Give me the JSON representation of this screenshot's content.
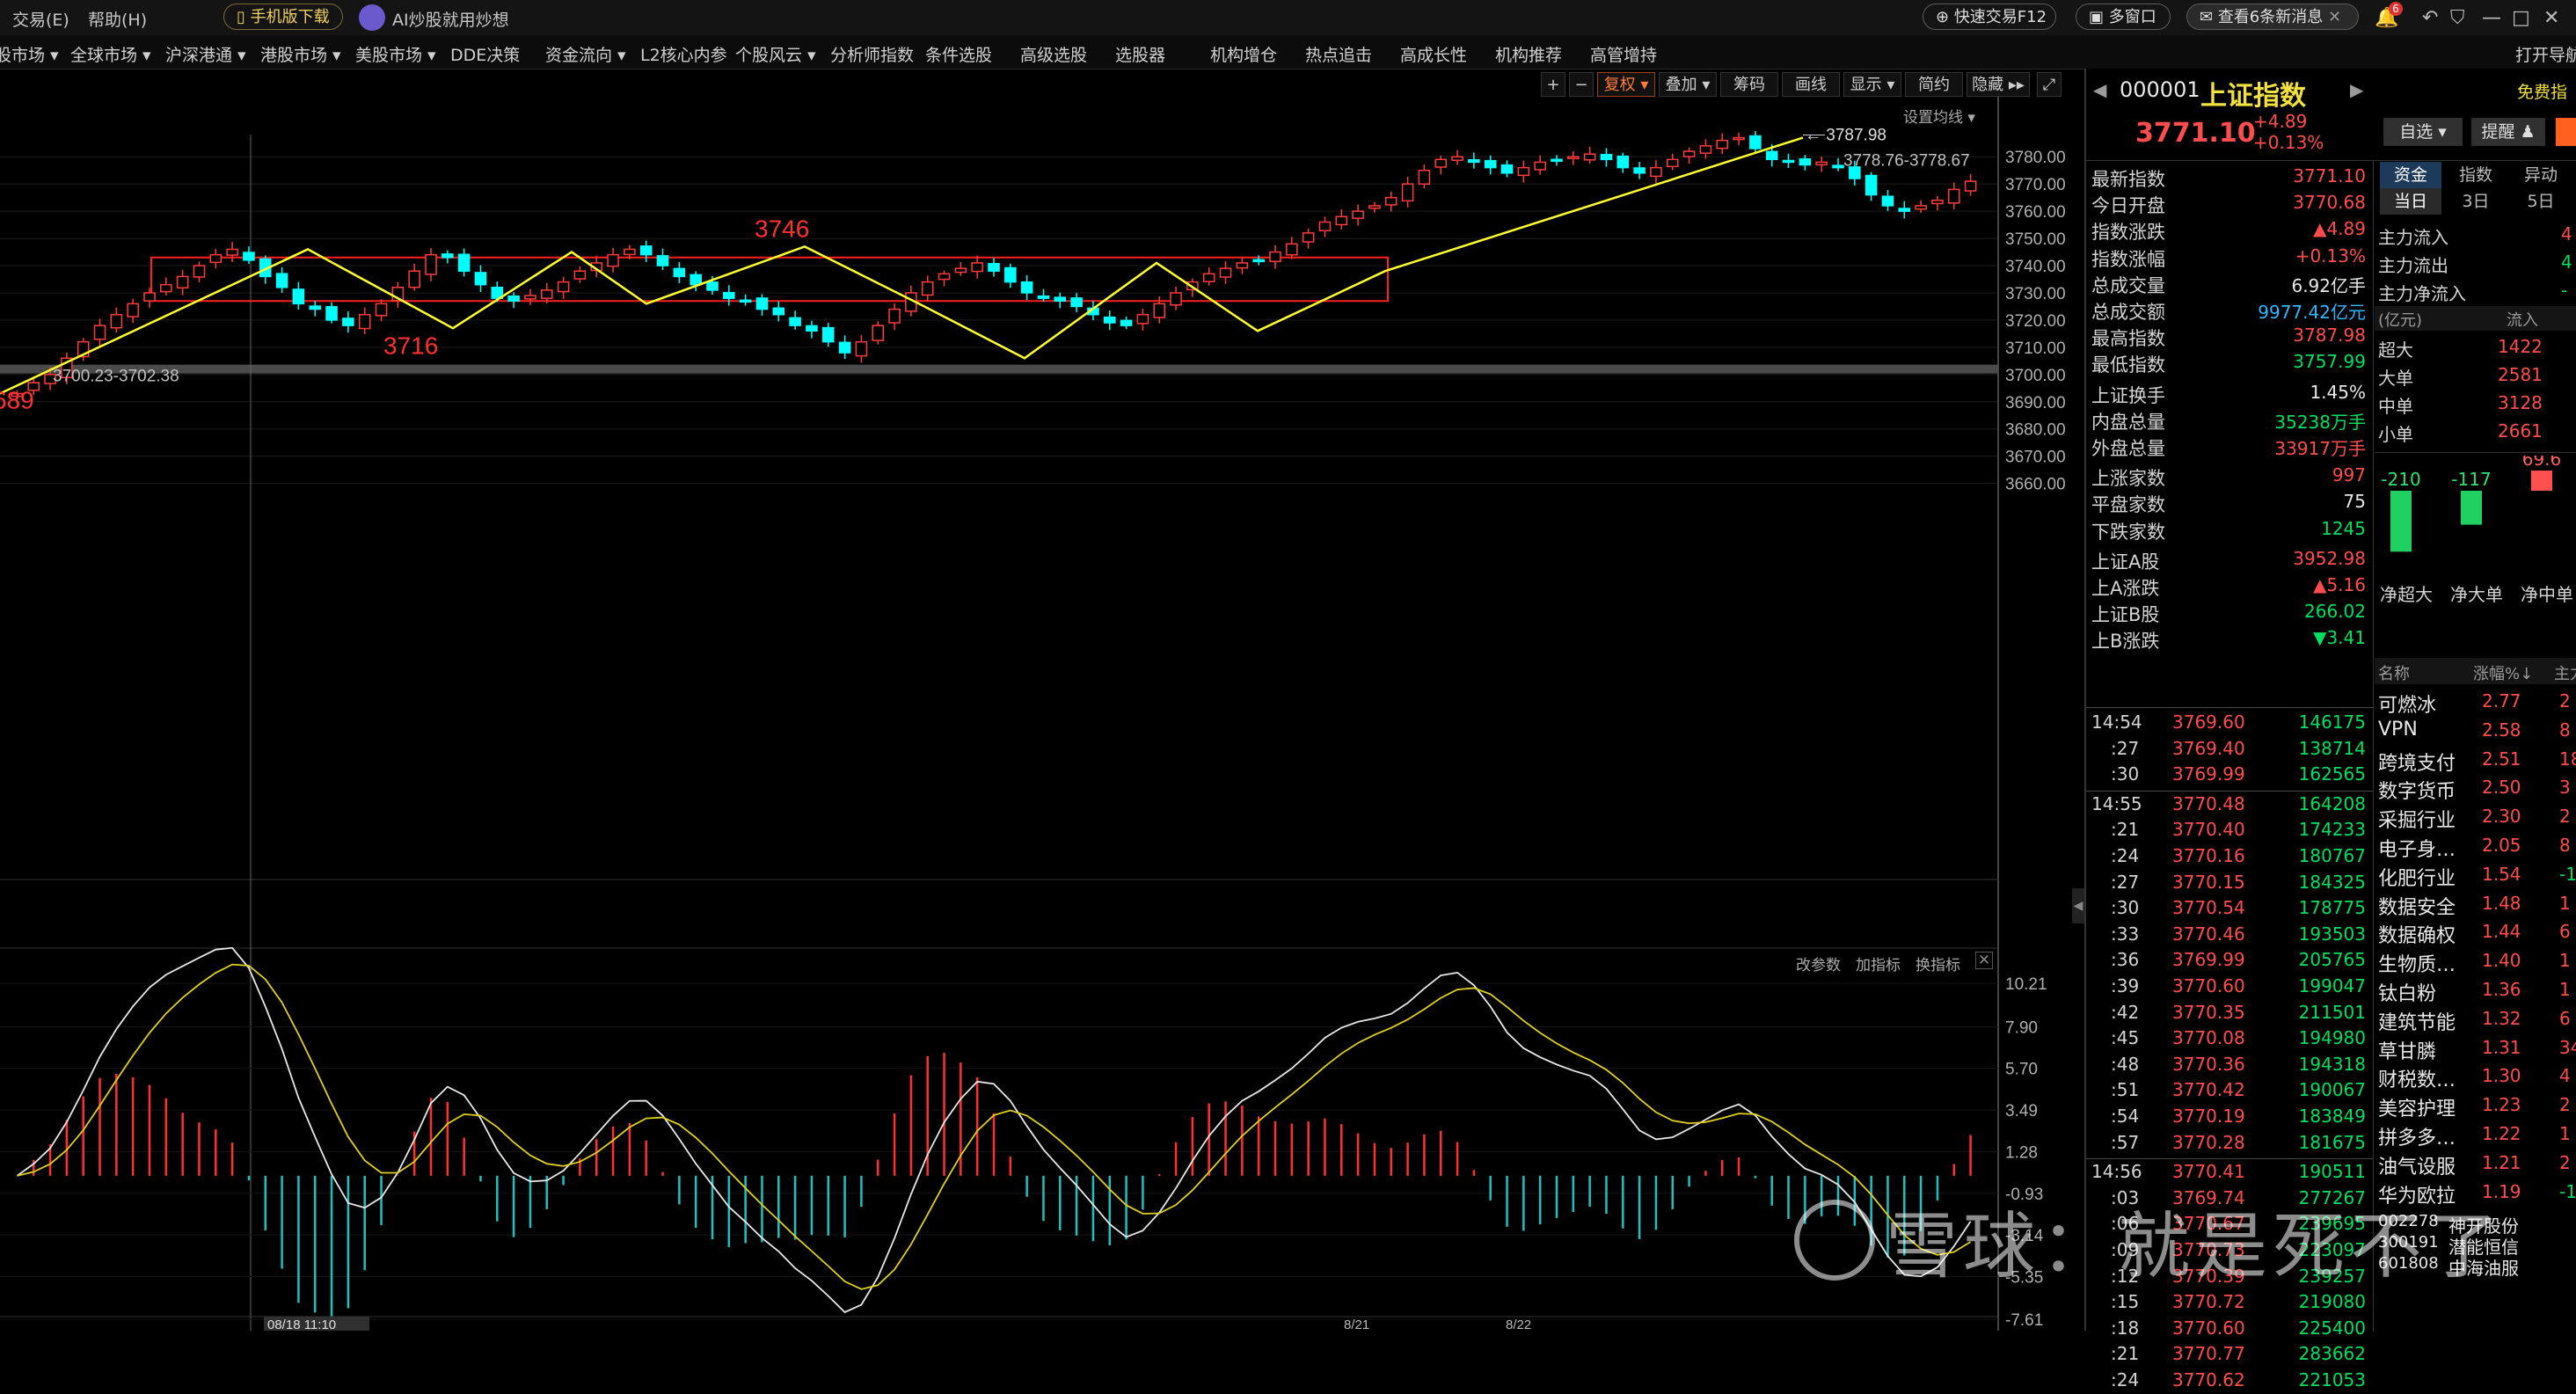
{
  "menubar": {
    "items": [
      "交易(E)",
      "帮助(H)"
    ],
    "mobile_download": "手机版下载",
    "ai_label": "AI炒股就用炒想",
    "quick_trade": "快速交易F12",
    "multi_window": "多窗口",
    "news_button": "查看6条新消息",
    "news_badge": "6"
  },
  "nav": {
    "items": [
      "股市场 ▾",
      "全球市场 ▾",
      "沪深港通 ▾",
      "港股市场 ▾",
      "美股市场 ▾",
      "DDE决策",
      "资金流向 ▾",
      "L2核心内参",
      "个股风云 ▾",
      "分析师指数",
      "条件选股",
      "高级选股",
      "选股器",
      "机构增仓",
      "热点追击",
      "高成长性",
      "机构推荐",
      "高管增持"
    ],
    "open_guide": "打开导航"
  },
  "toolbar": {
    "items": [
      "复权 ▾",
      "叠加 ▾",
      "筹码",
      "画线",
      "显示 ▾",
      "简约",
      "隐藏 ▸▸"
    ],
    "set_ma": "设置均线 ▾",
    "indicator_links": [
      "改参数",
      "加指标",
      "换指标"
    ]
  },
  "chart_data": {
    "type": "candlestick",
    "price_axis_ticks": [
      3780,
      3770,
      3760,
      3750,
      3740,
      3730,
      3720,
      3710,
      3700,
      3690,
      3680,
      3670,
      3660
    ],
    "price_range": [
      3656,
      3793
    ],
    "macd_axis_ticks": [
      "10.21",
      "7.90",
      "5.70",
      "3.49",
      "1.28",
      "-0.93",
      "-3.14",
      "-5.35",
      "-7.61"
    ],
    "macd_range": [
      -7.61,
      10.21
    ],
    "time_labels": [
      "08/18 11:10",
      "8/21",
      "8/22"
    ],
    "annotations": {
      "high_label": "3787.98",
      "range_label_top": "3778.76-3778.67",
      "range_label_bottom": "3700.23-3702.38",
      "label_3746": "3746",
      "label_3716": "3716",
      "label_left": "689"
    },
    "zigzag_path": [
      [
        0,
        3693
      ],
      [
        350,
        3746
      ],
      [
        515,
        3717
      ],
      [
        650,
        3745
      ],
      [
        735,
        3726
      ],
      [
        915,
        3747
      ],
      [
        1045,
        3726
      ],
      [
        1165,
        3706
      ],
      [
        1315,
        3741
      ],
      [
        1430,
        3716
      ],
      [
        1575,
        3738
      ],
      [
        2050,
        3787
      ]
    ],
    "box_range": [
      3727,
      3743
    ],
    "box_x": [
      172,
      1578
    ],
    "support_line": 3702,
    "close_series": [
      3693,
      3697,
      3700,
      3706,
      3712,
      3718,
      3722,
      3726,
      3730,
      3733,
      3736,
      3740,
      3744,
      3746,
      3742,
      3736,
      3732,
      3726,
      3724,
      3720,
      3718,
      3722,
      3726,
      3732,
      3738,
      3744,
      3743,
      3738,
      3733,
      3728,
      3727,
      3729,
      3731,
      3734,
      3738,
      3741,
      3744,
      3746,
      3744,
      3740,
      3736,
      3733,
      3731,
      3728,
      3727,
      3724,
      3722,
      3718,
      3716,
      3712,
      3708,
      3712,
      3718,
      3724,
      3730,
      3734,
      3737,
      3739,
      3741,
      3738,
      3734,
      3730,
      3728,
      3727,
      3725,
      3722,
      3719,
      3718,
      3722,
      3726,
      3730,
      3734,
      3737,
      3739,
      3741,
      3742,
      3745,
      3748,
      3752,
      3756,
      3758,
      3760,
      3762,
      3765,
      3770,
      3775,
      3779,
      3780,
      3778,
      3776,
      3774,
      3776,
      3778,
      3779,
      3780,
      3781,
      3779,
      3776,
      3774,
      3776,
      3779,
      3782,
      3784,
      3786,
      3787,
      3783,
      3779,
      3778,
      3777,
      3778,
      3776,
      3772,
      3766,
      3762,
      3760,
      3762,
      3764,
      3768,
      3771
    ]
  },
  "quote": {
    "code": "000001",
    "name": "上证指数",
    "price": "3771.10",
    "change": "+4.89",
    "change_pct": "+0.13%",
    "free_guide": "免费指",
    "btn_watch": "自选 ▾",
    "btn_alert": "提醒 ♟"
  },
  "stats": [
    {
      "label": "最新指数",
      "value": "3771.10",
      "color": "red"
    },
    {
      "label": "今日开盘",
      "value": "3770.68",
      "color": "red"
    },
    {
      "label": "指数涨跌",
      "value": "▲4.89",
      "color": "red"
    },
    {
      "label": "指数涨幅",
      "value": "+0.13%",
      "color": "red"
    },
    {
      "label": "总成交量",
      "value": "6.92亿手",
      "color": "white"
    },
    {
      "label": "总成交额",
      "value": "9977.42亿元",
      "color": "cyan"
    },
    {
      "label": "最高指数",
      "value": "3787.98",
      "color": "red"
    },
    {
      "label": "最低指数",
      "value": "3757.99",
      "color": "green"
    },
    {
      "label": "上证换手",
      "value": "1.45%",
      "color": "white"
    },
    {
      "label": "内盘总量",
      "value": "35238万手",
      "color": "green"
    },
    {
      "label": "外盘总量",
      "value": "33917万手",
      "color": "red"
    },
    {
      "label": "上涨家数",
      "value": "997",
      "color": "red"
    },
    {
      "label": "平盘家数",
      "value": "75",
      "color": "white"
    },
    {
      "label": "下跌家数",
      "value": "1245",
      "color": "green"
    },
    {
      "label": "上证A股",
      "value": "3952.98",
      "color": "red"
    },
    {
      "label": "上A涨跌",
      "value": "▲5.16",
      "color": "red"
    },
    {
      "label": "上证B股",
      "value": "266.02",
      "color": "green"
    },
    {
      "label": "上B涨跌",
      "value": "▼3.41",
      "color": "green"
    }
  ],
  "ticks": [
    {
      "time": "14:54",
      "price": "3769.60",
      "vol": "146175"
    },
    {
      "time": ":27",
      "price": "3769.40",
      "vol": "138714"
    },
    {
      "time": ":30",
      "price": "3769.99",
      "vol": "162565"
    },
    {
      "time": "14:55",
      "price": "3770.48",
      "vol": "164208"
    },
    {
      "time": ":21",
      "price": "3770.40",
      "vol": "174233"
    },
    {
      "time": ":24",
      "price": "3770.16",
      "vol": "180767"
    },
    {
      "time": ":27",
      "price": "3770.15",
      "vol": "184325"
    },
    {
      "time": ":30",
      "price": "3770.54",
      "vol": "178775"
    },
    {
      "time": ":33",
      "price": "3770.46",
      "vol": "193503"
    },
    {
      "time": ":36",
      "price": "3769.99",
      "vol": "205765"
    },
    {
      "time": ":39",
      "price": "3770.60",
      "vol": "199047"
    },
    {
      "time": ":42",
      "price": "3770.35",
      "vol": "211501"
    },
    {
      "time": ":45",
      "price": "3770.08",
      "vol": "194980"
    },
    {
      "time": ":48",
      "price": "3770.36",
      "vol": "194318"
    },
    {
      "time": ":51",
      "price": "3770.42",
      "vol": "190067"
    },
    {
      "time": ":54",
      "price": "3770.19",
      "vol": "183849"
    },
    {
      "time": ":57",
      "price": "3770.28",
      "vol": "181675"
    },
    {
      "time": "14:56",
      "price": "3770.41",
      "vol": "190511"
    },
    {
      "time": ":03",
      "price": "3769.74",
      "vol": "277267"
    },
    {
      "time": ":06",
      "price": "3770.67",
      "vol": "239695"
    },
    {
      "time": ":09",
      "price": "3770.73",
      "vol": "223097"
    },
    {
      "time": ":12",
      "price": "3770.39",
      "vol": "239257"
    },
    {
      "time": ":15",
      "price": "3770.72",
      "vol": "219080"
    },
    {
      "time": ":18",
      "price": "3770.60",
      "vol": "225400"
    },
    {
      "time": ":21",
      "price": "3770.77",
      "vol": "283662"
    },
    {
      "time": ":24",
      "price": "3770.62",
      "vol": "221053"
    }
  ],
  "flow": {
    "tabs": [
      "资金",
      "指数",
      "异动"
    ],
    "periods": [
      "当日",
      "3日",
      "5日"
    ],
    "rows": [
      {
        "label": "主力流入",
        "value": "4"
      },
      {
        "label": "主力流出",
        "value": "4"
      },
      {
        "label": "主力净流入",
        "value": "-"
      }
    ],
    "unit": "(亿元)",
    "col": "流入",
    "sizes": [
      {
        "label": "超大",
        "value": "1422"
      },
      {
        "label": "大单",
        "value": "2581"
      },
      {
        "label": "中单",
        "value": "3128"
      },
      {
        "label": "小单",
        "value": "2661"
      }
    ],
    "bar_values": [
      {
        "label": "净超大",
        "value": -210
      },
      {
        "label": "净大单",
        "value": -117
      },
      {
        "label": "净中单",
        "value": 69.6
      }
    ]
  },
  "sectors": {
    "headers": [
      "名称",
      "涨幅%↓",
      "主力"
    ],
    "rows": [
      {
        "name": "可燃冰",
        "pct": "2.77",
        "main": "2"
      },
      {
        "name": "VPN",
        "pct": "2.58",
        "main": "8"
      },
      {
        "name": "跨境支付",
        "pct": "2.51",
        "main": "18"
      },
      {
        "name": "数字货币",
        "pct": "2.50",
        "main": "3"
      },
      {
        "name": "采掘行业",
        "pct": "2.30",
        "main": "2"
      },
      {
        "name": "电子身…",
        "pct": "2.05",
        "main": "8"
      },
      {
        "name": "化肥行业",
        "pct": "1.54",
        "main": "-1"
      },
      {
        "name": "数据安全",
        "pct": "1.48",
        "main": "1"
      },
      {
        "name": "数据确权",
        "pct": "1.44",
        "main": "6"
      },
      {
        "name": "生物质…",
        "pct": "1.40",
        "main": "1"
      },
      {
        "name": "钛白粉",
        "pct": "1.36",
        "main": "1"
      },
      {
        "name": "建筑节能",
        "pct": "1.32",
        "main": "6"
      },
      {
        "name": "草甘膦",
        "pct": "1.31",
        "main": "34"
      },
      {
        "name": "财税数…",
        "pct": "1.30",
        "main": "4"
      },
      {
        "name": "美容护理",
        "pct": "1.23",
        "main": "2"
      },
      {
        "name": "拼多多…",
        "pct": "1.22",
        "main": "1"
      },
      {
        "name": "油气设服",
        "pct": "1.21",
        "main": "2"
      },
      {
        "name": "华为欧拉",
        "pct": "1.19",
        "main": "-1"
      }
    ],
    "stocks": [
      {
        "code": "002278",
        "name": "神开股份"
      },
      {
        "code": "300191",
        "name": "潜能恒信"
      },
      {
        "code": "601808",
        "name": "中海油服"
      }
    ]
  },
  "watermark": "雪球：就是死不了"
}
